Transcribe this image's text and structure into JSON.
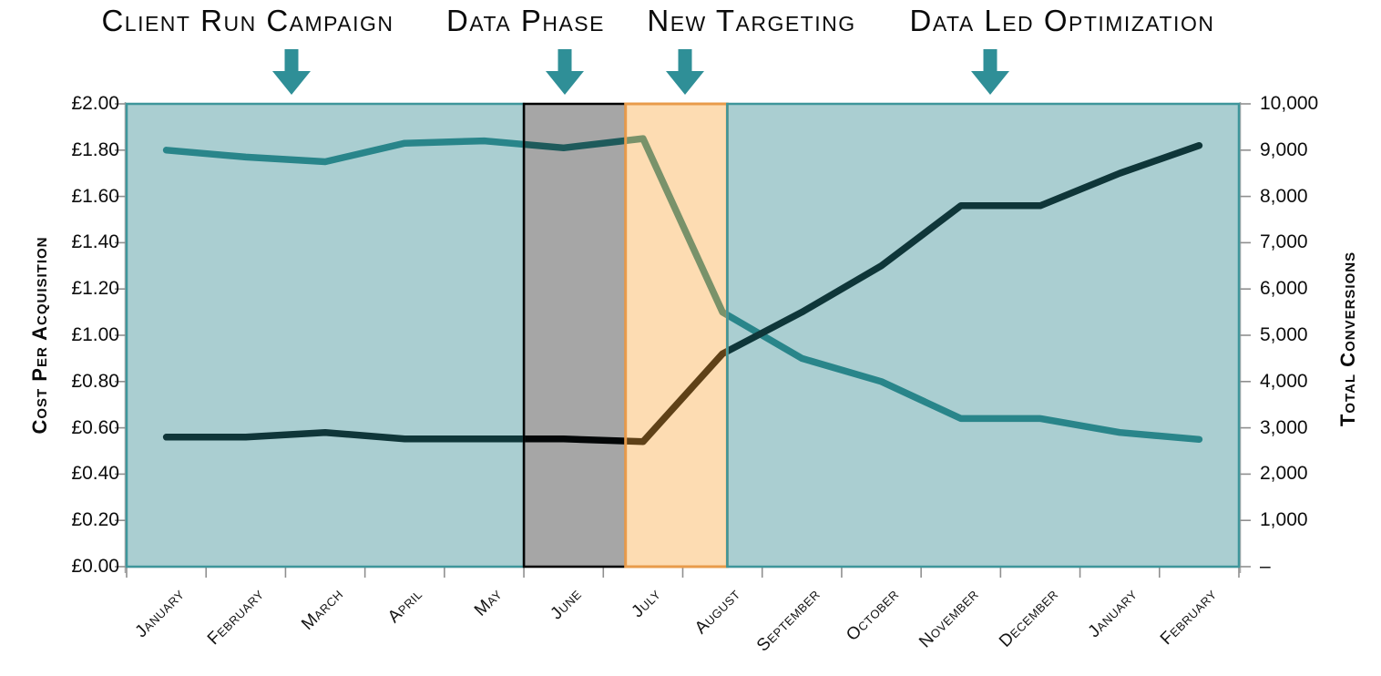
{
  "annotations": [
    {
      "label": "Client Run Campaign"
    },
    {
      "label": "Data Phase"
    },
    {
      "label": "New Targeting"
    },
    {
      "label": "Data Led Optimization"
    }
  ],
  "chart_data": {
    "type": "line",
    "categories": [
      "January",
      "February",
      "March",
      "April",
      "May",
      "June",
      "July",
      "August",
      "September",
      "October",
      "November",
      "December",
      "January",
      "February"
    ],
    "series": [
      {
        "name": "Cost Per Acquisition",
        "axis": "left",
        "color": "#2F8A8D",
        "values": [
          1.8,
          1.77,
          1.75,
          1.83,
          1.84,
          1.81,
          1.85,
          1.1,
          0.9,
          0.8,
          0.64,
          0.64,
          0.58,
          0.55
        ]
      },
      {
        "name": "Total Conversions",
        "axis": "right",
        "color": "#060a0b",
        "values": [
          2800,
          2800,
          2900,
          2760,
          2760,
          2760,
          2700,
          4600,
          5500,
          6500,
          7800,
          7800,
          8500,
          9100
        ]
      }
    ],
    "left_axis": {
      "title": "Cost Per Acquisition",
      "min": 0,
      "max": 2,
      "tick_labels": [
        "£2.00",
        "£1.80",
        "£1.60",
        "£1.40",
        "£1.20",
        "£1.00",
        "£0.80",
        "£0.60",
        "£0.40",
        "£0.20",
        "£0.00"
      ]
    },
    "right_axis": {
      "title": "Total Conversions",
      "min": 0,
      "max": 10000,
      "tick_labels": [
        "10,000",
        "9,000",
        "8,000",
        "7,000",
        "6,000",
        "5,000",
        "4,000",
        "3,000",
        "2,000",
        "1,000",
        "–"
      ]
    },
    "regions": [
      {
        "phase": "Client Run Campaign",
        "from": 0,
        "to": 5.0,
        "fill": "rgba(32,127,133,0.38)",
        "border": "#3E969B",
        "border_width": 2.5
      },
      {
        "phase": "Data Phase",
        "from": 5.0,
        "to": 6.28,
        "fill": "rgba(0,0,0,0.35)",
        "border": "#000000",
        "border_width": 2.5
      },
      {
        "phase": "New Targeting",
        "from": 6.28,
        "to": 7.56,
        "fill": "rgba(250,160,45,0.37)",
        "border": "#E89B4B",
        "border_width": 3
      },
      {
        "phase": "Data Led Optimization",
        "from": 7.56,
        "to": 14,
        "fill": "rgba(32,127,133,0.38)",
        "border": "#3E969B",
        "border_width": 2.5
      }
    ],
    "grid": false,
    "legend": "none"
  },
  "colors": {
    "arrow": "#2F8F97",
    "axis_line": "#A9A9A9",
    "tick_mark": "#8f8f8f"
  }
}
